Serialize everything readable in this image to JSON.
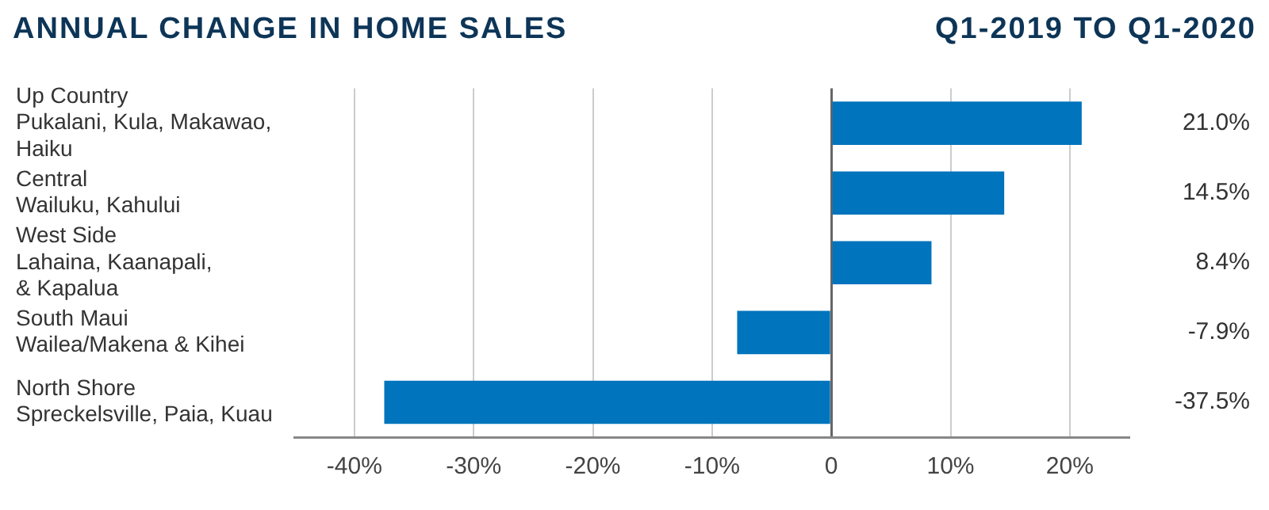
{
  "chart_data": {
    "type": "bar",
    "orientation": "horizontal",
    "title": "ANNUAL CHANGE IN HOME SALES",
    "subtitle": "Q1-2019 TO Q1-2020",
    "categories": [
      "Up Country\nPukalani, Kula, Makawao,\nHaiku",
      "Central\nWailuku, Kahului",
      "West Side\nLahaina, Kaanapali,\n& Kapalua",
      "South Maui\nWailea/Makena & Kihei",
      "North Shore\nSpreckelsville, Paia, Kuau"
    ],
    "values": [
      21.0,
      14.5,
      8.4,
      -7.9,
      -37.5
    ],
    "value_labels": [
      "21.0%",
      "14.5%",
      "8.4%",
      "-7.9%",
      "-37.5%"
    ],
    "color": "#0074bd",
    "xlim": [
      -45,
      25
    ],
    "xticks": [
      {
        "value": -40,
        "label": "-40%"
      },
      {
        "value": -30,
        "label": "-30%"
      },
      {
        "value": -20,
        "label": "-20%"
      },
      {
        "value": -10,
        "label": "-10%"
      },
      0,
      {
        "value": 10,
        "label": "10%"
      },
      {
        "value": 20,
        "label": "20%"
      }
    ],
    "grid": "x",
    "legend": false
  }
}
